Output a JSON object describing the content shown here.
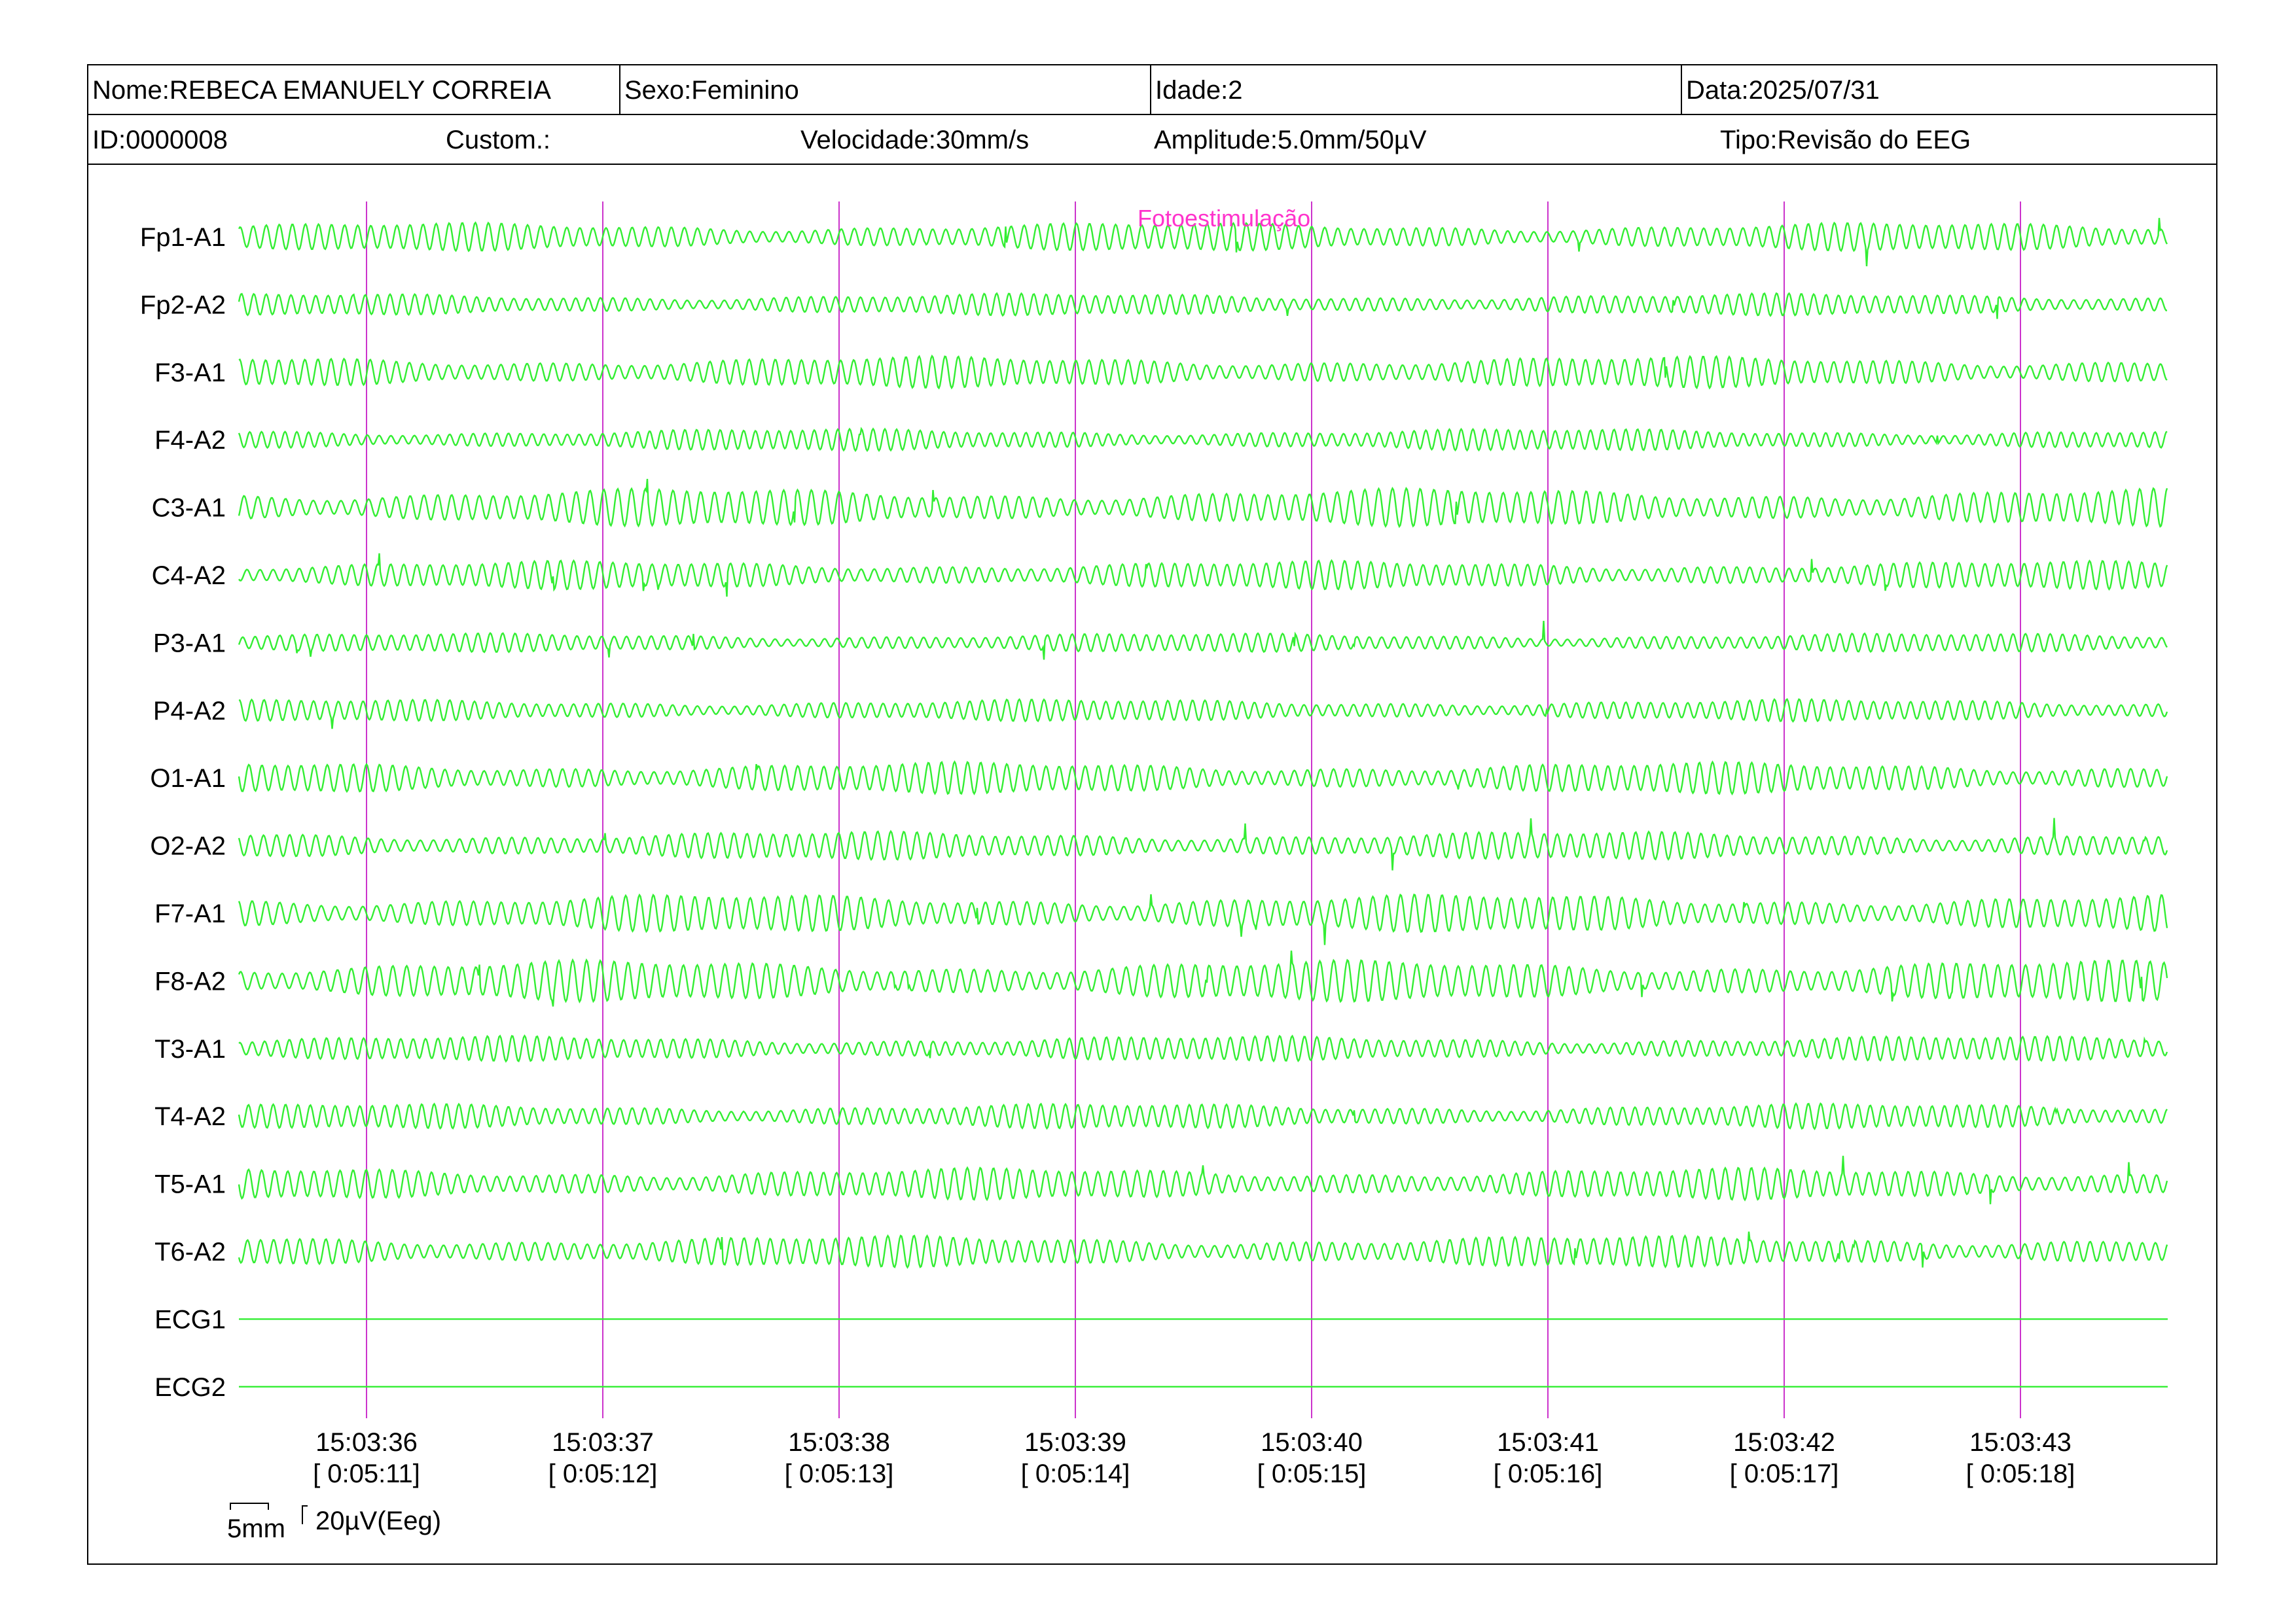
{
  "header": {
    "name": "Nome:REBECA EMANUELY CORREIA",
    "sex": "Sexo:Feminino",
    "age": "Idade:2",
    "date": "Data:2025/07/31",
    "id": "ID:0000008",
    "custom": "Custom.:",
    "speed": "Velocidade:30mm/s",
    "amplitude": "Amplitude:5.0mm/50µV",
    "type": "Tipo:Revisão do EEG"
  },
  "event_marker": "Fotoestimulação",
  "scale": {
    "time_label": "5mm",
    "amp_label": "20µV(Eeg)"
  },
  "colors": {
    "trace": "#33ee33",
    "gridline": "#cc33cc",
    "marker": "#ff33cc"
  },
  "chart_data": {
    "type": "line",
    "channels": [
      {
        "name": "Fp1-A1",
        "amp": 0.9,
        "freq": 18
      },
      {
        "name": "Fp2-A2",
        "amp": 0.7,
        "freq": 19
      },
      {
        "name": "F3-A1",
        "amp": 1.0,
        "freq": 18
      },
      {
        "name": "F4-A2",
        "amp": 0.7,
        "freq": 20
      },
      {
        "name": "C3-A1",
        "amp": 1.2,
        "freq": 17
      },
      {
        "name": "C4-A2",
        "amp": 0.9,
        "freq": 18
      },
      {
        "name": "P3-A1",
        "amp": 0.6,
        "freq": 19
      },
      {
        "name": "P4-A2",
        "amp": 0.7,
        "freq": 19
      },
      {
        "name": "O1-A1",
        "amp": 1.0,
        "freq": 18
      },
      {
        "name": "O2-A2",
        "amp": 0.9,
        "freq": 18
      },
      {
        "name": "F7-A1",
        "amp": 1.2,
        "freq": 17
      },
      {
        "name": "F8-A2",
        "amp": 1.3,
        "freq": 17
      },
      {
        "name": "T3-A1",
        "amp": 0.8,
        "freq": 19
      },
      {
        "name": "T4-A2",
        "amp": 0.8,
        "freq": 19
      },
      {
        "name": "T5-A1",
        "amp": 1.0,
        "freq": 18
      },
      {
        "name": "T6-A2",
        "amp": 1.0,
        "freq": 18
      },
      {
        "name": "ECG1",
        "amp": 0,
        "freq": 0
      },
      {
        "name": "ECG2",
        "amp": 0,
        "freq": 0
      }
    ],
    "time_ticks": [
      {
        "clock": "15:03:36",
        "elapsed": "[ 0:05:11]"
      },
      {
        "clock": "15:03:37",
        "elapsed": "[ 0:05:12]"
      },
      {
        "clock": "15:03:38",
        "elapsed": "[ 0:05:13]"
      },
      {
        "clock": "15:03:39",
        "elapsed": "[ 0:05:14]"
      },
      {
        "clock": "15:03:40",
        "elapsed": "[ 0:05:15]"
      },
      {
        "clock": "15:03:41",
        "elapsed": "[ 0:05:16]"
      },
      {
        "clock": "15:03:42",
        "elapsed": "[ 0:05:17]"
      },
      {
        "clock": "15:03:43",
        "elapsed": "[ 0:05:18]"
      }
    ]
  }
}
